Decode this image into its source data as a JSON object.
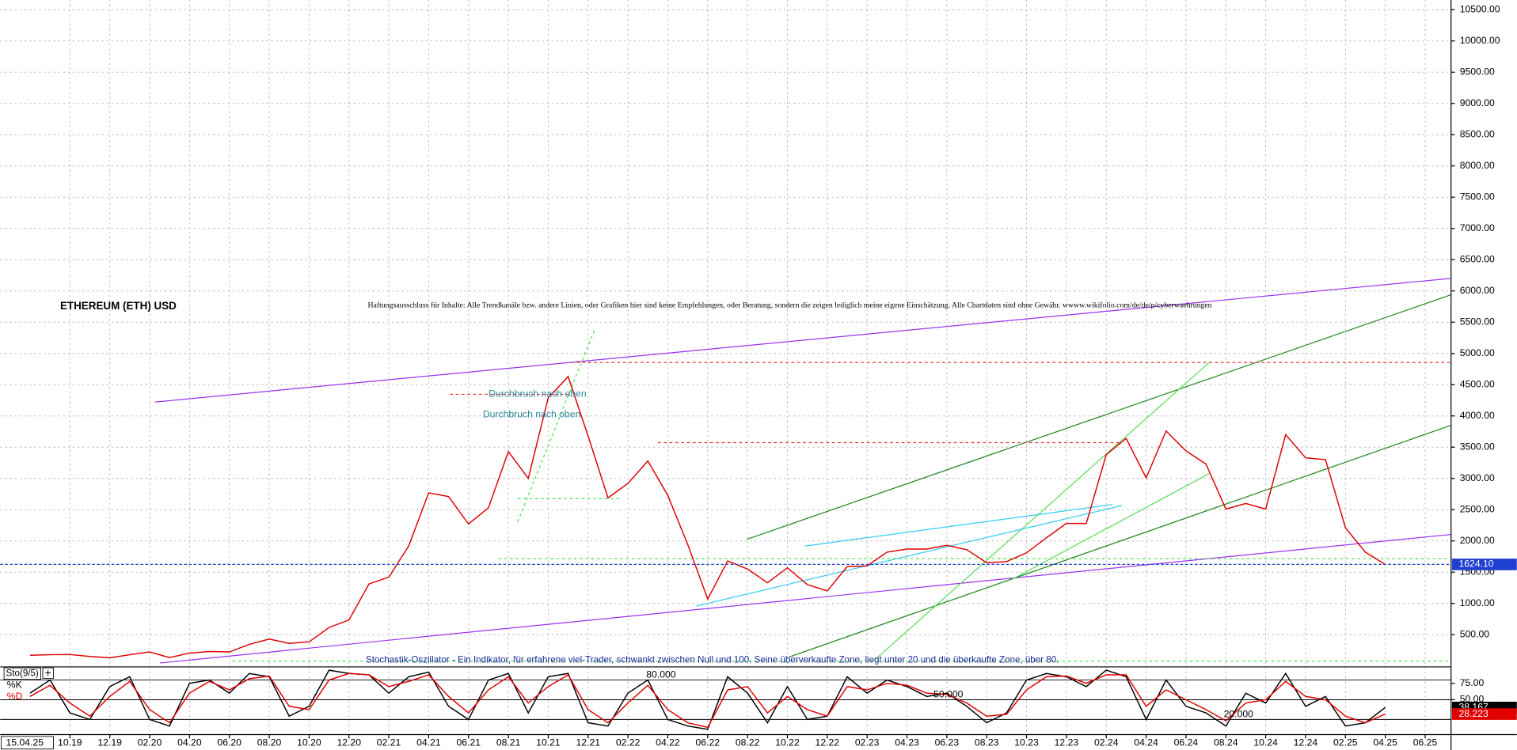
{
  "chart_data": [
    {
      "type": "line",
      "title": "ETHEREUM (ETH) USD",
      "subtitle": "Haftungsausschluss für Inhalte: Alle Trendkanäle bzw. andere Linien, oder Grafiken hier sind keine Empfehlungen, oder Beratung, sondern die zeigen lediglich meine eigene Einschätzung. Alle Chartdaten sind ohne Gewähr. wwww.wikifolio.com/de/de/p/cyberwaehrungen",
      "annotations": [
        "Durchbruch nach oben",
        "Durchbruch nach oben"
      ],
      "cursor_date": "15.04.25",
      "x": [
        -2,
        -1,
        0,
        1,
        2,
        3,
        4,
        5,
        6,
        7,
        8,
        9,
        10,
        11,
        12,
        13,
        14,
        15,
        16,
        17,
        18,
        19,
        20,
        21,
        22,
        23,
        24,
        25,
        26,
        27,
        28,
        29,
        30,
        31,
        32,
        33,
        34,
        35,
        36,
        37,
        38,
        39,
        40,
        41,
        42,
        43,
        44,
        45,
        46,
        47,
        48,
        49,
        50,
        51,
        52,
        53,
        54,
        55,
        56,
        57,
        58,
        59,
        60,
        61,
        62,
        63,
        64,
        65,
        66
      ],
      "series": [
        {
          "name": "ETHEREUM (ETH) USD",
          "color": "#e00000",
          "values": [
            170,
            180,
            182,
            152,
            130,
            180,
            225,
            133,
            205,
            230,
            225,
            345,
            430,
            360,
            385,
            615,
            735,
            1310,
            1420,
            1920,
            2770,
            2710,
            2270,
            2530,
            3430,
            3000,
            4290,
            4630,
            3680,
            2690,
            2920,
            3280,
            2730,
            1940,
            1070,
            1680,
            1550,
            1330,
            1570,
            1300,
            1200,
            1590,
            1600,
            1820,
            1870,
            1870,
            1930,
            1860,
            1650,
            1670,
            1810,
            2050,
            2280,
            2280,
            3380,
            3640,
            3010,
            3760,
            3440,
            3230,
            2510,
            2600,
            2510,
            3700,
            3330,
            3300,
            2210,
            1820,
            1624.1
          ]
        }
      ],
      "last_price": {
        "value": 1624.1,
        "label": "1624.10"
      },
      "xlim": [
        -3.5,
        69.3
      ],
      "xticks": [
        {
          "value": 0,
          "label": "10.19"
        },
        {
          "value": 2,
          "label": "12.19"
        },
        {
          "value": 4,
          "label": "02.20"
        },
        {
          "value": 6,
          "label": "04.20"
        },
        {
          "value": 8,
          "label": "06.20"
        },
        {
          "value": 10,
          "label": "08.20"
        },
        {
          "value": 12,
          "label": "10.20"
        },
        {
          "value": 14,
          "label": "12.20"
        },
        {
          "value": 16,
          "label": "02.21"
        },
        {
          "value": 18,
          "label": "04.21"
        },
        {
          "value": 20,
          "label": "06.21"
        },
        {
          "value": 22,
          "label": "08.21"
        },
        {
          "value": 24,
          "label": "10.21"
        },
        {
          "value": 26,
          "label": "12.21"
        },
        {
          "value": 28,
          "label": "02.22"
        },
        {
          "value": 30,
          "label": "04.22"
        },
        {
          "value": 32,
          "label": "06.22"
        },
        {
          "value": 34,
          "label": "08.22"
        },
        {
          "value": 36,
          "label": "10.22"
        },
        {
          "value": 38,
          "label": "12.22"
        },
        {
          "value": 40,
          "label": "02.23"
        },
        {
          "value": 42,
          "label": "04.23"
        },
        {
          "value": 44,
          "label": "06.23"
        },
        {
          "value": 46,
          "label": "08.23"
        },
        {
          "value": 48,
          "label": "10.23"
        },
        {
          "value": 50,
          "label": "12.23"
        },
        {
          "value": 52,
          "label": "02.24"
        },
        {
          "value": 54,
          "label": "04.24"
        },
        {
          "value": 56,
          "label": "06.24"
        },
        {
          "value": 58,
          "label": "08.24"
        },
        {
          "value": 60,
          "label": "10.24"
        },
        {
          "value": 62,
          "label": "12.24"
        },
        {
          "value": 64,
          "label": "02.25"
        },
        {
          "value": 66,
          "label": "04.25"
        },
        {
          "value": 68,
          "label": "06.25"
        }
      ],
      "ylim": [
        0,
        10655
      ],
      "yticks": [
        {
          "value": 500,
          "label": "500.00"
        },
        {
          "value": 1000,
          "label": "1000.00"
        },
        {
          "value": 1500,
          "label": "1500.00"
        },
        {
          "value": 2000,
          "label": "2000.00"
        },
        {
          "value": 2500,
          "label": "2500.00"
        },
        {
          "value": 3000,
          "label": "3000.00"
        },
        {
          "value": 3500,
          "label": "3500.00"
        },
        {
          "value": 4000,
          "label": "4000.00"
        },
        {
          "value": 4500,
          "label": "4500.00"
        },
        {
          "value": 5000,
          "label": "5000.00"
        },
        {
          "value": 5500,
          "label": "5500.00"
        },
        {
          "value": 6000,
          "label": "6000.00"
        },
        {
          "value": 6500,
          "label": "6500.00"
        },
        {
          "value": 7000,
          "label": "7000.00"
        },
        {
          "value": 7500,
          "label": "7500.00"
        },
        {
          "value": 8000,
          "label": "8000.00"
        },
        {
          "value": 8500,
          "label": "8500.00"
        },
        {
          "value": 9000,
          "label": "9000.00"
        },
        {
          "value": 9500,
          "label": "9500.00"
        },
        {
          "value": 10000,
          "label": "10000.00"
        },
        {
          "value": 10500,
          "label": "10500.00"
        }
      ],
      "grid": true
    },
    {
      "type": "line",
      "title": "Sto(9/5)",
      "annotations": [
        "Stochastik-Oszillator - Ein Indikator, für erfahrene viel-Trader, schwankt zwischen Null und 100. Seine überverkaufte Zone, liegt unter 20 und die überkaufte Zone, über 80."
      ],
      "levels": [
        {
          "value": 80,
          "label": "80.000"
        },
        {
          "value": 50,
          "label": "50.000"
        },
        {
          "value": 20,
          "label": "20.000"
        }
      ],
      "series": [
        {
          "name": "%K",
          "color": "#000000",
          "axis": "y2",
          "values": [
            60,
            80,
            30,
            20,
            70,
            85,
            20,
            10,
            75,
            80,
            60,
            90,
            85,
            25,
            40,
            95,
            90,
            88,
            60,
            85,
            92,
            40,
            20,
            80,
            90,
            30,
            85,
            90,
            15,
            10,
            60,
            80,
            20,
            10,
            5,
            85,
            60,
            15,
            70,
            20,
            25,
            85,
            60,
            80,
            70,
            55,
            60,
            40,
            15,
            30,
            80,
            90,
            85,
            70,
            95,
            85,
            20,
            80,
            40,
            30,
            10,
            60,
            45,
            90,
            40,
            55,
            10,
            15,
            38.167
          ]
        },
        {
          "name": "%D",
          "color": "#e00000",
          "axis": "y2",
          "values": [
            55,
            72,
            45,
            25,
            55,
            78,
            35,
            15,
            60,
            78,
            65,
            82,
            86,
            40,
            35,
            80,
            90,
            88,
            70,
            78,
            88,
            55,
            30,
            65,
            85,
            45,
            70,
            88,
            35,
            15,
            45,
            72,
            35,
            15,
            8,
            65,
            70,
            30,
            55,
            35,
            25,
            70,
            65,
            75,
            72,
            60,
            58,
            45,
            25,
            28,
            65,
            85,
            86,
            75,
            88,
            88,
            40,
            65,
            50,
            35,
            18,
            45,
            50,
            78,
            55,
            50,
            25,
            15,
            28.223
          ]
        }
      ],
      "y2lim": [
        0,
        100
      ],
      "y2ticks": [
        {
          "value": 75,
          "label": "75.00"
        },
        {
          "value": 50,
          "label": "50.00"
        }
      ]
    }
  ]
}
